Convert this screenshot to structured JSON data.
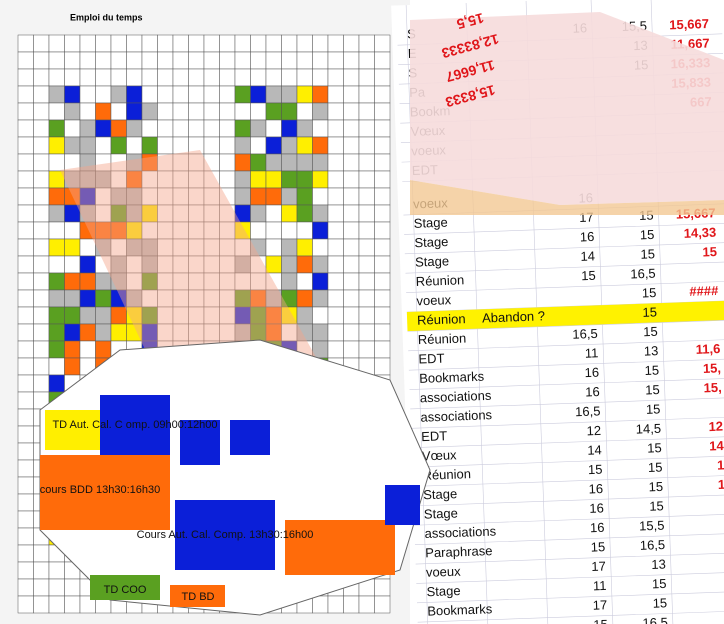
{
  "timetable": {
    "title": "Emploi du temps"
  },
  "sheet": {
    "top_rows": [
      {
        "label": "S",
        "cells": [
          "16",
          "15,5",
          "15,667"
        ]
      },
      {
        "label": "E",
        "cells": [
          "",
          "13",
          "11,667"
        ]
      },
      {
        "label": "S",
        "cells": [
          "",
          "15",
          "16,333"
        ]
      },
      {
        "label": "Pa",
        "cells": [
          "",
          "",
          "15,833"
        ]
      },
      {
        "label": "Bookm",
        "cells": [
          "",
          "",
          "667"
        ]
      },
      {
        "label": "Vœux",
        "cells": [
          "",
          "",
          ""
        ]
      },
      {
        "label": "voeux",
        "cells": [
          "",
          "",
          ""
        ]
      },
      {
        "label": "EDT",
        "cells": [
          "",
          "",
          ""
        ]
      }
    ],
    "rows": [
      {
        "label": "voeux",
        "cells": [
          "16",
          "",
          ""
        ]
      },
      {
        "label": "Stage",
        "cells": [
          "17",
          "15",
          "15,667"
        ]
      },
      {
        "label": "Stage",
        "cells": [
          "16",
          "15",
          "14,33"
        ]
      },
      {
        "label": "Stage",
        "cells": [
          "14",
          "15",
          "15"
        ]
      },
      {
        "label": "Réunion",
        "cells": [
          "15",
          "16,5",
          ""
        ]
      },
      {
        "label": "voeux",
        "cells": [
          "",
          "15",
          "####"
        ]
      },
      {
        "label": "Réunion",
        "note": "Abandon ?",
        "cells": [
          "",
          "15",
          ""
        ]
      },
      {
        "label": "Réunion",
        "cells": [
          "16,5",
          "15",
          ""
        ]
      },
      {
        "label": "EDT",
        "cells": [
          "11",
          "13",
          "11,6"
        ]
      },
      {
        "label": "Bookmarks",
        "cells": [
          "16",
          "15",
          "15,"
        ]
      },
      {
        "label": "associations",
        "cells": [
          "16",
          "15",
          "15,"
        ]
      },
      {
        "label": "associations",
        "cells": [
          "16,5",
          "15",
          ""
        ]
      },
      {
        "label": "EDT",
        "cells": [
          "12",
          "14,5",
          "12"
        ]
      },
      {
        "label": "Vœux",
        "cells": [
          "14",
          "15",
          "14"
        ]
      },
      {
        "label": "Réunion",
        "cells": [
          "15",
          "15",
          "1"
        ]
      },
      {
        "label": "Stage",
        "cells": [
          "16",
          "15",
          "1"
        ]
      },
      {
        "label": "Stage",
        "cells": [
          "16",
          "15",
          ""
        ]
      },
      {
        "label": "associations",
        "cells": [
          "16",
          "15,5",
          ""
        ]
      },
      {
        "label": "Paraphrase",
        "cells": [
          "15",
          "16,5",
          ""
        ]
      },
      {
        "label": "voeux",
        "cells": [
          "17",
          "13",
          ""
        ]
      },
      {
        "label": "Stage",
        "cells": [
          "11",
          "15",
          ""
        ]
      },
      {
        "label": "Bookmarks",
        "cells": [
          "17",
          "15",
          ""
        ]
      },
      {
        "label": "Stage",
        "cells": [
          "15",
          "16,5",
          ""
        ]
      }
    ]
  },
  "warped_sheet": {
    "values": [
      "15,5",
      "12,83333",
      "11,6667",
      "15,8333"
    ]
  },
  "blob": {
    "cells": [
      {
        "label": "cours BDD 13h30:16h30"
      },
      {
        "label": "Cours Aut. Cal. Comp. 13h30:16h00"
      },
      {
        "label": "TD Aut. Cal. C omp. 09h00:12h00"
      },
      {
        "label": "TD COO"
      },
      {
        "label": "TD BD"
      }
    ]
  }
}
